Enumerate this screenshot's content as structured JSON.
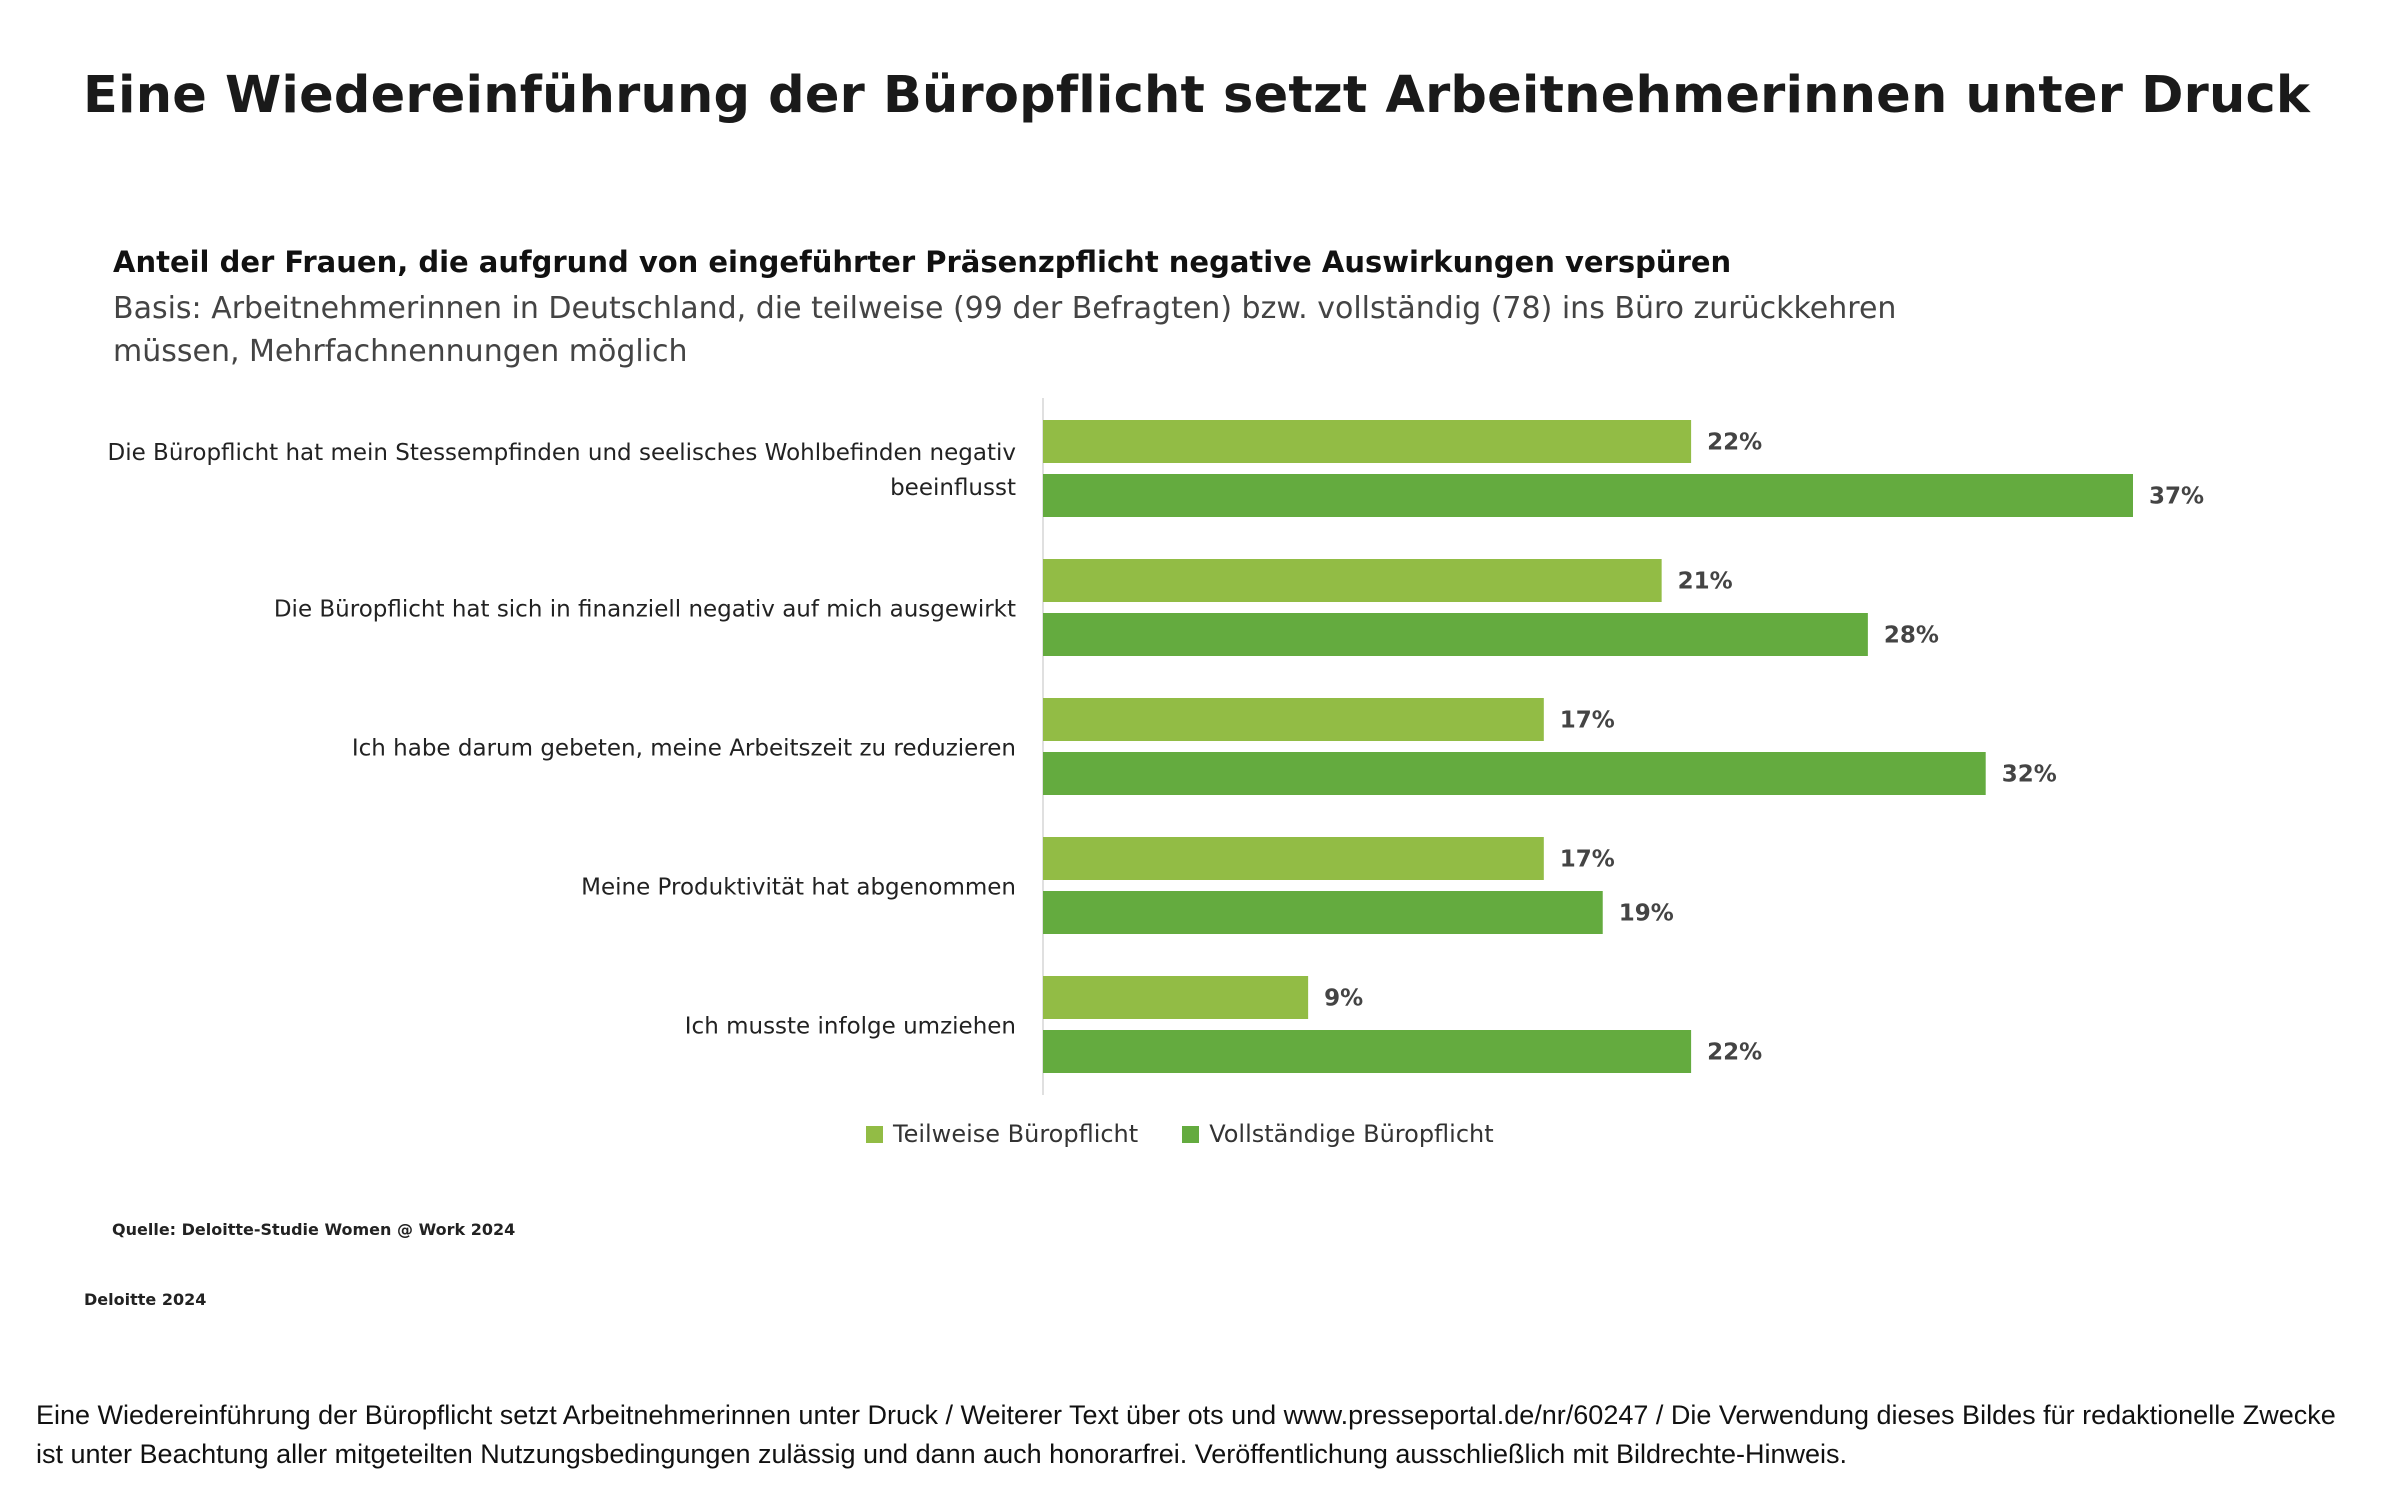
{
  "page": {
    "title": "Eine Wiedereinführung der Büropflicht setzt Arbeitnehmerinnen unter Druck",
    "source": "Quelle: Deloitte-Studie Women @ Work 2024",
    "brand": "Deloitte 2024",
    "caption": "Eine Wiedereinführung der Büropflicht setzt Arbeitnehmerinnen unter Druck / Weiterer Text über ots und www.presseportal.de/nr/60247 / Die Verwendung dieses Bildes für redaktionelle Zwecke ist unter Beachtung aller mitgeteilten Nutzungsbedingungen zulässig und dann auch honorarfrei. Veröffentlichung ausschließlich mit Bildrechte-Hinweis."
  },
  "chart_data": {
    "type": "bar",
    "orientation": "horizontal",
    "title": "Anteil der Frauen, die aufgrund von eingeführter Präsenzpflicht negative Auswirkungen verspüren",
    "subtitle": "Basis: Arbeitnehmerinnen in Deutschland, die teilweise (99 der Befragten) bzw. vollständig (78) ins Büro zurückkehren müssen, Mehrfachnennungen möglich",
    "categories": [
      [
        "Die Büropflicht hat mein Stessempfinden und seelisches Wohlbefinden negativ",
        "beeinflusst"
      ],
      [
        "Die Büropflicht hat sich in finanziell negativ auf mich ausgewirkt"
      ],
      [
        "Ich habe darum gebeten, meine Arbeitszeit zu reduzieren"
      ],
      [
        "Meine Produktivität hat abgenommen"
      ],
      [
        "Ich musste infolge umziehen"
      ]
    ],
    "series": [
      {
        "name": "Teilweise Büropflicht",
        "values": [
          22,
          21,
          17,
          17,
          9
        ],
        "labels": [
          "22%",
          "21%",
          "17%",
          "17%",
          "9%"
        ],
        "color": "#92bc45"
      },
      {
        "name": "Vollständige Büropflicht",
        "values": [
          37,
          28,
          32,
          19,
          22
        ],
        "labels": [
          "37%",
          "28%",
          "32%",
          "19%",
          "22%"
        ],
        "color": "#64ab3f"
      }
    ],
    "value_unit": "%",
    "xlim": [
      0,
      37
    ],
    "grid": false,
    "legend": "bottom"
  }
}
